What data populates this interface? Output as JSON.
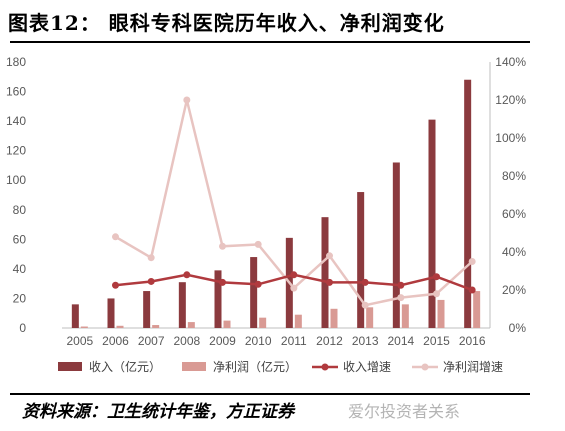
{
  "title": "图表12：  眼科专科医院历年收入、净利润变化",
  "source": "资料来源：卫生统计年鉴，方正证券",
  "watermark": "爱尔投资者关系",
  "colors": {
    "revenue_bar": "#8b3a3e",
    "profit_bar": "#d99a94",
    "revenue_growth_line": "#b03a3e",
    "profit_growth_line": "#e8c4c1",
    "axis": "#bfbfbf"
  },
  "chart_data": {
    "type": "bar",
    "categories": [
      "2005",
      "2006",
      "2007",
      "2008",
      "2009",
      "2010",
      "2011",
      "2012",
      "2013",
      "2014",
      "2015",
      "2016"
    ],
    "y_left": {
      "ylim": [
        0,
        180
      ],
      "ticks": [
        "0",
        "20",
        "40",
        "60",
        "80",
        "100",
        "120",
        "140",
        "160",
        "180"
      ]
    },
    "y_right": {
      "ylim": [
        0,
        140
      ],
      "ticks": [
        "0%",
        "20%",
        "40%",
        "60%",
        "80%",
        "100%",
        "120%",
        "140%"
      ]
    },
    "grid": false,
    "legend_position": "bottom",
    "series": [
      {
        "name": "收入（亿元）",
        "type": "bar",
        "axis": "left",
        "values": [
          16,
          20,
          25,
          31,
          39,
          48,
          61,
          75,
          92,
          112,
          141,
          168
        ]
      },
      {
        "name": "净利润（亿元）",
        "type": "bar",
        "axis": "left",
        "values": [
          1,
          1.5,
          2,
          4,
          5,
          7,
          9,
          13,
          14,
          16,
          19,
          25
        ]
      },
      {
        "name": "收入增速",
        "type": "line",
        "axis": "right",
        "marker": "circle",
        "values": [
          null,
          22.5,
          24.5,
          28,
          24,
          23,
          28,
          24,
          24,
          22.5,
          27,
          20
        ]
      },
      {
        "name": "净利润增速",
        "type": "line",
        "axis": "right",
        "marker": "circle",
        "values": [
          null,
          48,
          37,
          120,
          43,
          44,
          21,
          38,
          12,
          16,
          18,
          35
        ]
      }
    ]
  }
}
